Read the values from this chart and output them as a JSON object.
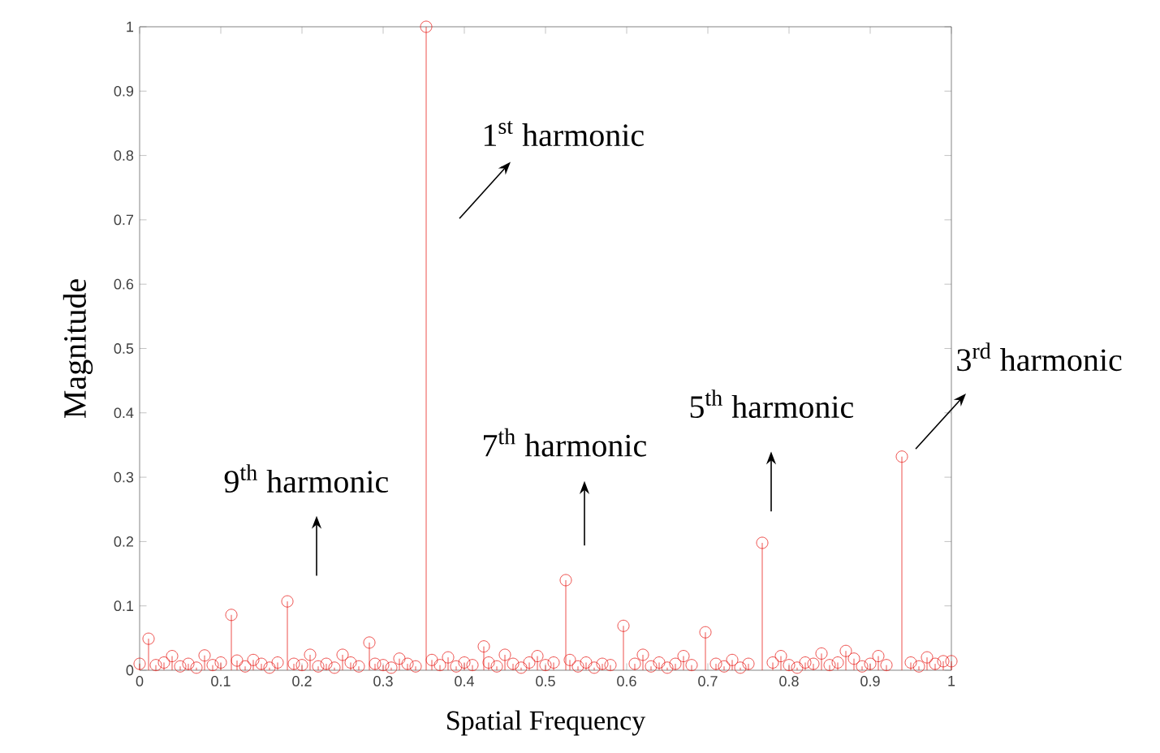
{
  "chart_data": {
    "type": "lollipop",
    "xlabel": "Spatial Frequency",
    "ylabel": "Magnitude",
    "x": [
      0.0,
      0.011,
      0.02,
      0.03,
      0.04,
      0.05,
      0.06,
      0.07,
      0.08,
      0.09,
      0.1,
      0.113,
      0.12,
      0.13,
      0.14,
      0.15,
      0.16,
      0.17,
      0.182,
      0.19,
      0.2,
      0.21,
      0.22,
      0.23,
      0.24,
      0.25,
      0.26,
      0.27,
      0.283,
      0.29,
      0.3,
      0.31,
      0.32,
      0.33,
      0.34,
      0.353,
      0.36,
      0.37,
      0.38,
      0.39,
      0.4,
      0.41,
      0.424,
      0.43,
      0.44,
      0.45,
      0.46,
      0.47,
      0.48,
      0.49,
      0.5,
      0.51,
      0.525,
      0.53,
      0.54,
      0.55,
      0.56,
      0.57,
      0.58,
      0.596,
      0.61,
      0.62,
      0.63,
      0.64,
      0.65,
      0.66,
      0.67,
      0.68,
      0.697,
      0.71,
      0.72,
      0.73,
      0.74,
      0.75,
      0.767,
      0.78,
      0.79,
      0.8,
      0.81,
      0.82,
      0.83,
      0.84,
      0.85,
      0.86,
      0.87,
      0.88,
      0.89,
      0.9,
      0.91,
      0.92,
      0.939,
      0.95,
      0.96,
      0.97,
      0.98,
      0.99,
      1.0
    ],
    "values": [
      0.01,
      0.049,
      0.008,
      0.012,
      0.022,
      0.006,
      0.01,
      0.004,
      0.023,
      0.008,
      0.012,
      0.086,
      0.015,
      0.006,
      0.016,
      0.01,
      0.004,
      0.012,
      0.107,
      0.01,
      0.008,
      0.024,
      0.006,
      0.01,
      0.004,
      0.024,
      0.012,
      0.006,
      0.043,
      0.01,
      0.008,
      0.004,
      0.018,
      0.01,
      0.006,
      1.0,
      0.016,
      0.008,
      0.02,
      0.006,
      0.012,
      0.008,
      0.037,
      0.012,
      0.006,
      0.024,
      0.01,
      0.004,
      0.012,
      0.022,
      0.008,
      0.012,
      0.14,
      0.016,
      0.006,
      0.012,
      0.004,
      0.01,
      0.008,
      0.069,
      0.01,
      0.024,
      0.006,
      0.012,
      0.004,
      0.01,
      0.022,
      0.008,
      0.059,
      0.01,
      0.006,
      0.016,
      0.004,
      0.01,
      0.198,
      0.012,
      0.022,
      0.008,
      0.004,
      0.012,
      0.01,
      0.026,
      0.008,
      0.012,
      0.03,
      0.018,
      0.006,
      0.01,
      0.022,
      0.008,
      0.332,
      0.012,
      0.006,
      0.02,
      0.01,
      0.014,
      0.014
    ],
    "color": "#e8231f",
    "marker": "circle",
    "xlim": [
      0,
      1
    ],
    "ylim": [
      0,
      1
    ],
    "xticks": [
      0,
      0.1,
      0.2,
      0.3,
      0.4,
      0.5,
      0.6,
      0.7,
      0.8,
      0.9,
      1
    ],
    "yticks": [
      0,
      0.1,
      0.2,
      0.3,
      0.4,
      0.5,
      0.6,
      0.7,
      0.8,
      0.9,
      1
    ],
    "grid": false,
    "annotations": [
      "1$^{st}$ harmonic",
      "3$^{rd}$ harmonic",
      "5$^{th}$ harmonic",
      "7$^{th}$ harmonic",
      "9$^{th}$ harmonic"
    ]
  }
}
